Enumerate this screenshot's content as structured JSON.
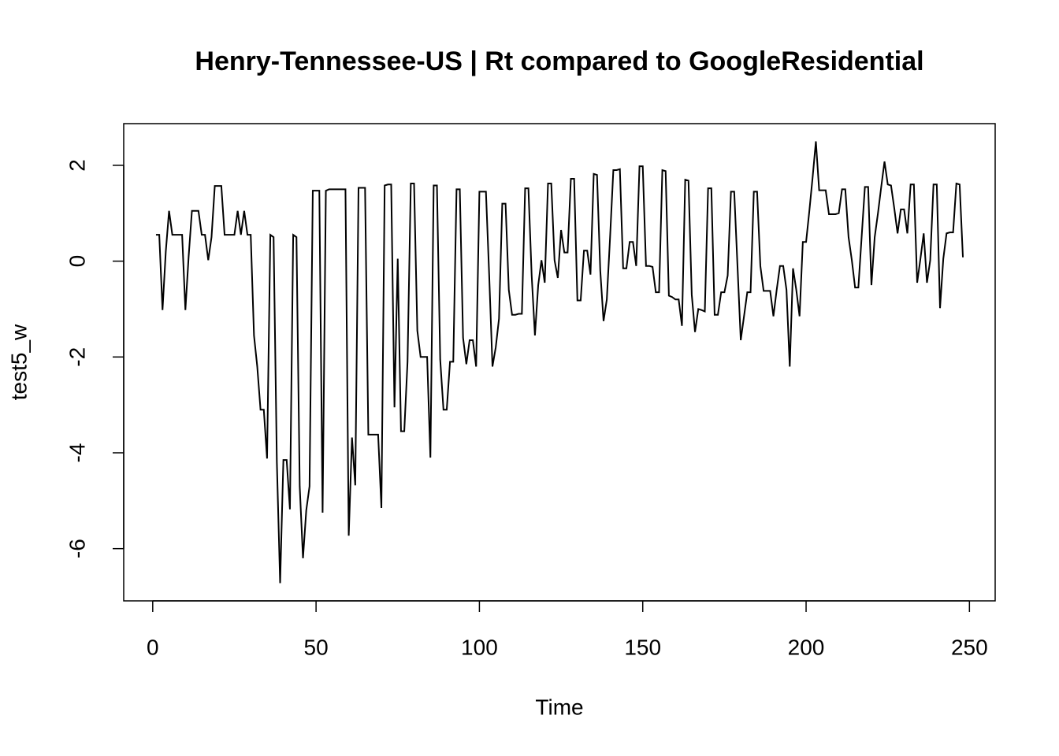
{
  "chart_data": {
    "type": "line",
    "title": "Henry-Tennessee-US | Rt compared to GoogleResidential",
    "xlabel": "Time",
    "ylabel": "test5_w",
    "color": "#000000",
    "grid": false,
    "x": [
      1,
      2,
      3,
      4,
      5,
      6,
      7,
      8,
      9,
      10,
      11,
      12,
      13,
      14,
      15,
      16,
      17,
      18,
      19,
      20,
      21,
      22,
      23,
      24,
      25,
      26,
      27,
      28,
      29,
      30,
      31,
      32,
      33,
      34,
      35,
      36,
      37,
      38,
      39,
      40,
      41,
      42,
      43,
      44,
      45,
      46,
      47,
      48,
      49,
      50,
      51,
      52,
      53,
      54,
      55,
      56,
      57,
      58,
      59,
      60,
      61,
      62,
      63,
      64,
      65,
      66,
      67,
      68,
      69,
      70,
      71,
      72,
      73,
      74,
      75,
      76,
      77,
      78,
      79,
      80,
      81,
      82,
      83,
      84,
      85,
      86,
      87,
      88,
      89,
      90,
      91,
      92,
      93,
      94,
      95,
      96,
      97,
      98,
      99,
      100,
      101,
      102,
      103,
      104,
      105,
      106,
      107,
      108,
      109,
      110,
      111,
      112,
      113,
      114,
      115,
      116,
      117,
      118,
      119,
      120,
      121,
      122,
      123,
      124,
      125,
      126,
      127,
      128,
      129,
      130,
      131,
      132,
      133,
      134,
      135,
      136,
      137,
      138,
      139,
      140,
      141,
      142,
      143,
      144,
      145,
      146,
      147,
      148,
      149,
      150,
      151,
      152,
      153,
      154,
      155,
      156,
      157,
      158,
      159,
      160,
      161,
      162,
      163,
      164,
      165,
      166,
      167,
      168,
      169,
      170,
      171,
      172,
      173,
      174,
      175,
      176,
      177,
      178,
      179,
      180,
      181,
      182,
      183,
      184,
      185,
      186,
      187,
      188,
      189,
      190,
      191,
      192,
      193,
      194,
      195,
      196,
      197,
      198,
      199,
      200,
      201,
      202,
      203,
      204,
      205,
      206,
      207,
      208,
      209,
      210,
      211,
      212,
      213,
      214,
      215,
      216,
      217,
      218,
      219,
      220,
      221,
      222,
      223,
      224,
      225,
      226,
      227,
      228,
      229,
      230,
      231,
      232,
      233,
      234,
      235,
      236,
      237,
      238,
      239,
      240,
      241,
      242,
      243,
      244,
      245,
      246,
      247,
      248
    ],
    "values": [
      0.55,
      0.55,
      -1.02,
      0.2,
      1.05,
      0.55,
      0.55,
      0.55,
      0.55,
      -1.02,
      0.1,
      1.05,
      1.05,
      1.05,
      0.55,
      0.55,
      0.02,
      0.5,
      1.57,
      1.57,
      1.57,
      0.55,
      0.55,
      0.55,
      0.55,
      1.05,
      0.55,
      1.05,
      0.55,
      0.55,
      -1.55,
      -2.2,
      -3.1,
      -3.1,
      -4.12,
      0.55,
      0.5,
      -4.2,
      -6.72,
      -4.15,
      -4.15,
      -5.18,
      0.55,
      0.5,
      -4.7,
      -6.2,
      -5.2,
      -4.7,
      1.47,
      1.47,
      1.47,
      -5.25,
      1.47,
      1.5,
      1.5,
      1.5,
      1.5,
      1.5,
      1.5,
      -5.73,
      -3.68,
      -4.68,
      1.53,
      1.53,
      1.53,
      -3.62,
      -3.62,
      -3.62,
      -3.62,
      -5.15,
      1.58,
      1.6,
      1.6,
      -3.05,
      0.05,
      -3.55,
      -3.55,
      -2.1,
      1.62,
      1.62,
      -1.45,
      -2.0,
      -2.0,
      -2.0,
      -4.1,
      1.58,
      1.58,
      -2.05,
      -3.1,
      -3.1,
      -2.1,
      -2.1,
      1.5,
      1.5,
      -1.6,
      -2.15,
      -1.65,
      -1.65,
      -2.2,
      1.45,
      1.45,
      1.45,
      -0.3,
      -2.2,
      -1.8,
      -1.2,
      1.2,
      1.2,
      -0.6,
      -1.12,
      -1.12,
      -1.1,
      -1.1,
      1.52,
      1.52,
      -0.3,
      -1.55,
      -0.5,
      0.02,
      -0.45,
      1.62,
      1.62,
      0.02,
      -0.35,
      0.65,
      0.18,
      0.18,
      1.72,
      1.72,
      -0.82,
      -0.82,
      0.22,
      0.22,
      -0.28,
      1.82,
      1.8,
      -0.2,
      -1.25,
      -0.8,
      0.5,
      1.9,
      1.9,
      1.92,
      -0.15,
      -0.15,
      0.4,
      0.4,
      -0.1,
      1.98,
      1.98,
      -0.1,
      -0.1,
      -0.12,
      -0.65,
      -0.65,
      1.9,
      1.88,
      -0.72,
      -0.75,
      -0.8,
      -0.8,
      -1.35,
      1.7,
      1.68,
      -0.7,
      -1.48,
      -1.0,
      -1.02,
      -1.05,
      1.52,
      1.52,
      -1.12,
      -1.12,
      -0.65,
      -0.65,
      -0.3,
      1.45,
      1.45,
      -0.1,
      -1.65,
      -1.15,
      -0.65,
      -0.65,
      1.45,
      1.45,
      -0.1,
      -0.62,
      -0.62,
      -0.62,
      -1.15,
      -0.6,
      -0.1,
      -0.1,
      -0.6,
      -2.2,
      -0.15,
      -0.6,
      -1.15,
      0.4,
      0.4,
      1.05,
      1.75,
      2.5,
      1.48,
      1.48,
      1.48,
      0.98,
      0.98,
      0.98,
      1.0,
      1.5,
      1.5,
      0.5,
      0.02,
      -0.55,
      -0.55,
      0.5,
      1.55,
      1.55,
      -0.5,
      0.5,
      1.0,
      1.55,
      2.08,
      1.6,
      1.58,
      1.1,
      0.58,
      1.08,
      1.08,
      0.58,
      1.6,
      1.6,
      -0.45,
      0.05,
      0.58,
      -0.45,
      0.02,
      1.6,
      1.6,
      -0.98,
      0.05,
      0.58,
      0.6,
      0.6,
      1.62,
      1.6,
      0.08
    ],
    "xlim": [
      -8.88,
      257.88
    ],
    "xticks": [
      0,
      50,
      100,
      150,
      200,
      250
    ],
    "ylim": [
      -7.09,
      2.87
    ],
    "yticks": [
      -6,
      -4,
      -2,
      0,
      2
    ]
  }
}
